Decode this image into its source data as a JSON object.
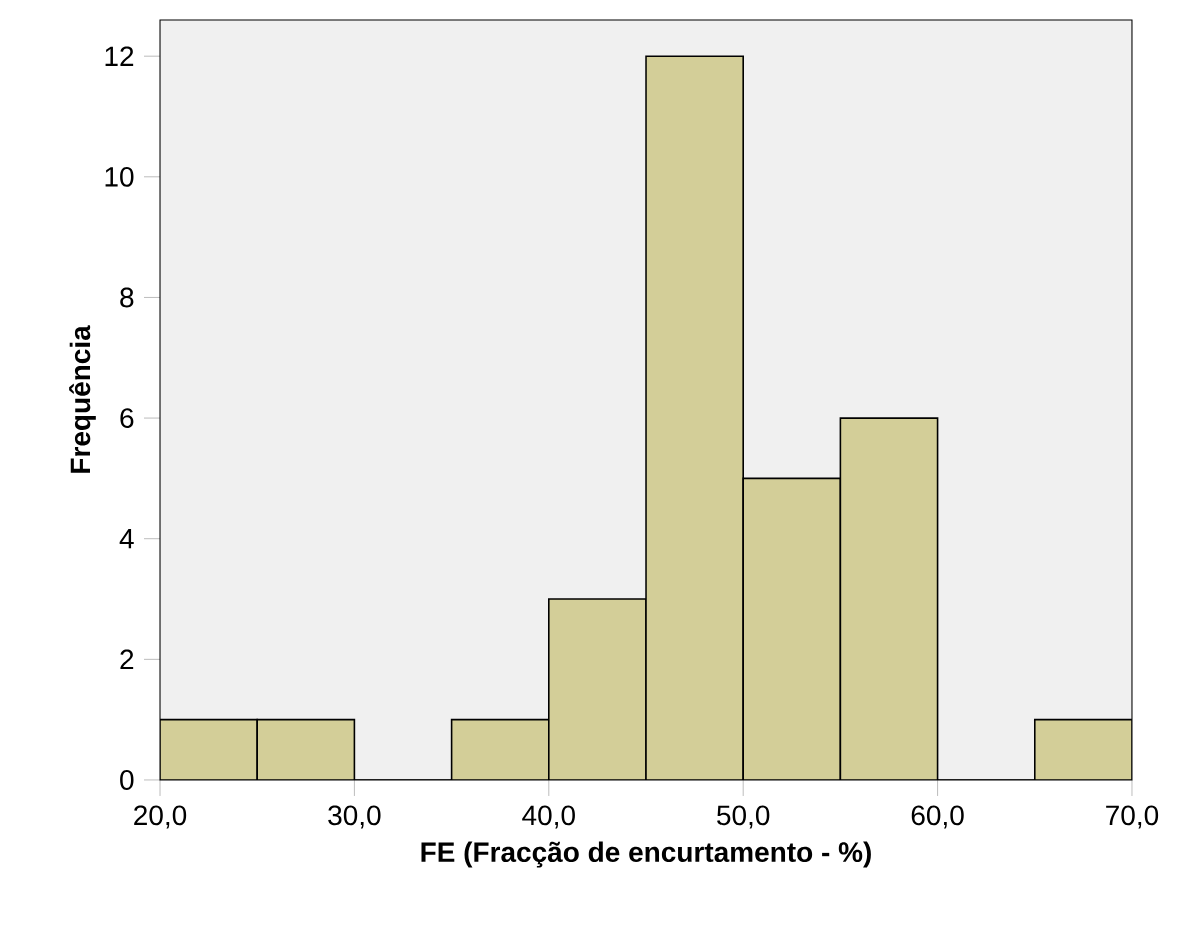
{
  "chart_data": {
    "type": "histogram",
    "xlabel": "FE (Fracção de encurtamento - %)",
    "ylabel": "Frequência",
    "bins": [
      20,
      25,
      30,
      35,
      40,
      45,
      50,
      55,
      60,
      65,
      70
    ],
    "values": [
      1,
      1,
      0,
      1,
      3,
      12,
      5,
      6,
      0,
      1
    ],
    "color": "#d3ce98",
    "xlim": [
      20,
      70
    ],
    "xticks": [
      {
        "value": 20,
        "label": "20,0"
      },
      {
        "value": 30,
        "label": "30,0"
      },
      {
        "value": 40,
        "label": "40,0"
      },
      {
        "value": 50,
        "label": "50,0"
      },
      {
        "value": 60,
        "label": "60,0"
      },
      {
        "value": 70,
        "label": "70,0"
      }
    ],
    "ylim": [
      0,
      12.6
    ],
    "yticks": [
      0,
      2,
      4,
      6,
      8,
      10,
      12
    ],
    "grid": false
  }
}
